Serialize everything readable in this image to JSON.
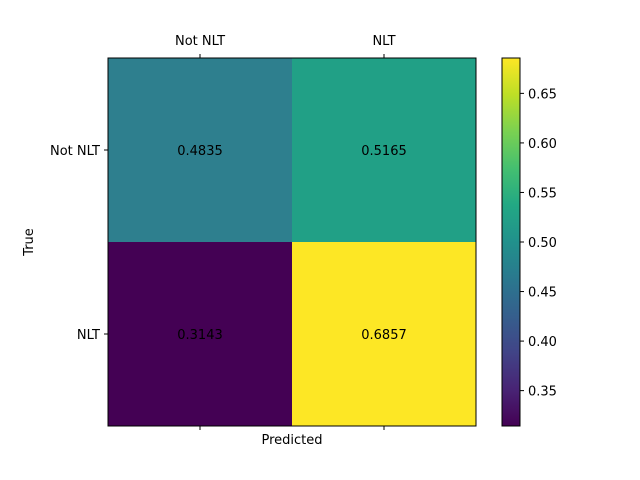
{
  "chart_data": {
    "type": "heatmap",
    "title": "",
    "xlabel": "Predicted",
    "ylabel": "True",
    "x_categories": [
      "Not NLT",
      "NLT"
    ],
    "y_categories": [
      "Not NLT",
      "NLT"
    ],
    "values": [
      [
        0.4835,
        0.5165
      ],
      [
        0.3143,
        0.6857
      ]
    ],
    "value_labels": [
      [
        "0.4835",
        "0.5165"
      ],
      [
        "0.3143",
        "0.6857"
      ]
    ],
    "x_tick_position": "top",
    "colormap": "viridis",
    "colorbar": {
      "range": [
        0.3143,
        0.6857
      ],
      "ticks": [
        0.35,
        0.4,
        0.45,
        0.5,
        0.55,
        0.6,
        0.65
      ],
      "tick_labels": [
        "0.35",
        "0.40",
        "0.45",
        "0.50",
        "0.55",
        "0.60",
        "0.65"
      ]
    },
    "cell_colors": [
      [
        "#2e7f8e",
        "#21a086"
      ],
      [
        "#440154",
        "#fde725"
      ]
    ],
    "grid": false
  }
}
